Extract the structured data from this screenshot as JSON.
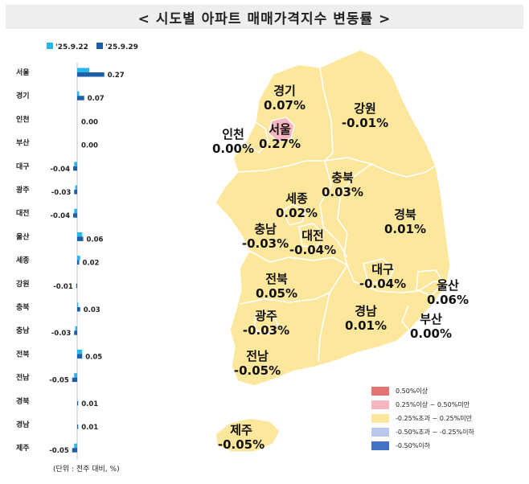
{
  "title": "< 시도별 아파트 매매가격지수 변동률 >",
  "unit_note": "(단위 : 전주 대비, %)",
  "colors": {
    "prev_week": "#29b6e8",
    "curr_week": "#1f5fa8",
    "map_fill": "#fde79c",
    "map_highlight": "#f7b6c0"
  },
  "chart_data": {
    "type": "bar",
    "orientation": "horizontal",
    "categories": [
      "서울",
      "경기",
      "인천",
      "부산",
      "대구",
      "광주",
      "대전",
      "울산",
      "세종",
      "강원",
      "충북",
      "충남",
      "전북",
      "전남",
      "경북",
      "경남",
      "제주"
    ],
    "series": [
      {
        "name": "'25.9.22",
        "values": [
          0.12,
          0.02,
          0.0,
          0.0,
          -0.03,
          -0.02,
          -0.03,
          0.05,
          0.03,
          0.0,
          0.01,
          -0.02,
          0.05,
          -0.03,
          0.0,
          0.0,
          -0.03
        ]
      },
      {
        "name": "'25.9.29",
        "values": [
          0.27,
          0.07,
          0.0,
          0.0,
          -0.04,
          -0.03,
          -0.04,
          0.06,
          0.02,
          -0.01,
          0.03,
          -0.03,
          0.05,
          -0.05,
          0.01,
          0.01,
          -0.05
        ]
      }
    ],
    "value_labels": [
      "0.27",
      "0.07",
      "0.00",
      "0.00",
      "-0.04",
      "-0.03",
      "-0.04",
      "0.06",
      "0.02",
      "-0.01",
      "0.03",
      "-0.03",
      "0.05",
      "-0.05",
      "0.01",
      "0.01",
      "-0.05"
    ]
  },
  "map": {
    "regions": [
      {
        "key": "gyeonggi",
        "name": "경기",
        "value": "0.07%"
      },
      {
        "key": "gangwon",
        "name": "강원",
        "value": "-0.01%"
      },
      {
        "key": "incheon",
        "name": "인천",
        "value": "0.00%"
      },
      {
        "key": "seoul",
        "name": "서울",
        "value": "0.27%"
      },
      {
        "key": "chungbuk",
        "name": "충북",
        "value": "0.03%"
      },
      {
        "key": "sejong",
        "name": "세종",
        "value": "0.02%"
      },
      {
        "key": "gyeongbuk",
        "name": "경북",
        "value": "0.01%"
      },
      {
        "key": "chungnam",
        "name": "충남",
        "value": "-0.03%"
      },
      {
        "key": "daejeon",
        "name": "대전",
        "value": "-0.04%"
      },
      {
        "key": "jeonbuk",
        "name": "전북",
        "value": "0.05%"
      },
      {
        "key": "daegu",
        "name": "대구",
        "value": "-0.04%"
      },
      {
        "key": "ulsan",
        "name": "울산",
        "value": "0.06%"
      },
      {
        "key": "gwangju",
        "name": "광주",
        "value": "-0.03%"
      },
      {
        "key": "gyeongnam",
        "name": "경남",
        "value": "0.01%"
      },
      {
        "key": "busan",
        "name": "부산",
        "value": "0.00%"
      },
      {
        "key": "jeonnam",
        "name": "전남",
        "value": "-0.05%"
      },
      {
        "key": "jeju",
        "name": "제주",
        "value": "-0.05%"
      }
    ]
  },
  "legend": [
    {
      "label": "0.50%이상",
      "color": "#e57373"
    },
    {
      "label": "0.25%이상 ~ 0.50%미만",
      "color": "#f7b6c0"
    },
    {
      "label": "-0.25%초과 ~ 0.25%미만",
      "color": "#fde79c"
    },
    {
      "label": "-0.50%초과 ~ -0.25%이하",
      "color": "#b9c8ea"
    },
    {
      "label": "-0.50%이하",
      "color": "#4472c4"
    }
  ]
}
